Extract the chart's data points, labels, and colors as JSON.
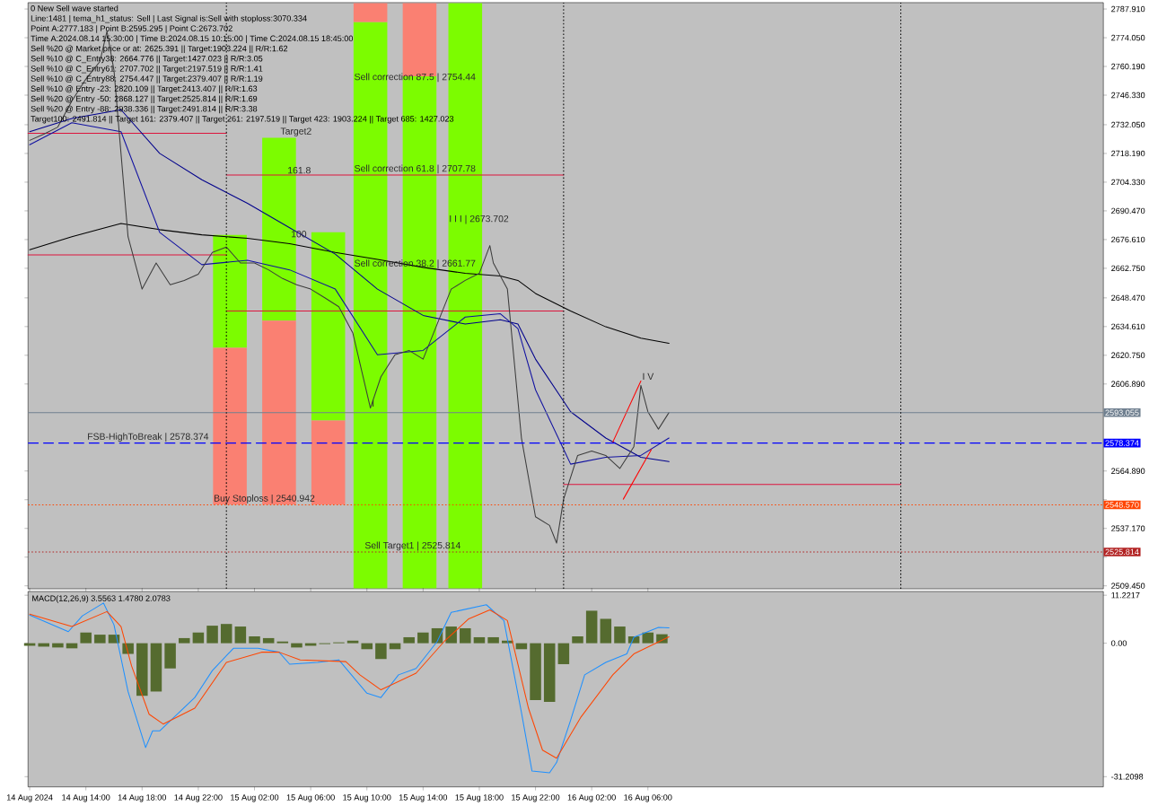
{
  "chart_data": [
    {
      "type": "line",
      "xlim": [
        "2024-08-14T09:53",
        "2024-08-17T14:25"
      ],
      "ylim": [
        2508,
        2791
      ],
      "tick_labels": "y",
      "yticks": [
        {
          "value": 2787.91,
          "label": "2787.910"
        },
        {
          "value": 2774.05,
          "label": "2774.050"
        },
        {
          "value": 2760.19,
          "label": "2760.190"
        },
        {
          "value": 2746.33,
          "label": "2746.330"
        },
        {
          "value": 2732.05,
          "label": "2732.050"
        },
        {
          "value": 2718.19,
          "label": "2718.190"
        },
        {
          "value": 2704.33,
          "label": "2704.330"
        },
        {
          "value": 2690.47,
          "label": "2690.470"
        },
        {
          "value": 2676.61,
          "label": "2676.610"
        },
        {
          "value": 2662.75,
          "label": "2662.750"
        },
        {
          "value": 2648.47,
          "label": "2648.470"
        },
        {
          "value": 2634.61,
          "label": "2634.610"
        },
        {
          "value": 2620.75,
          "label": "2620.750"
        },
        {
          "value": 2606.89,
          "label": "2606.890"
        },
        {
          "value": 2564.89,
          "label": "2564.890"
        },
        {
          "value": 2551.03,
          "label": null
        },
        {
          "value": 2537.17,
          "label": "2537.170"
        },
        {
          "value": 2523.31,
          "label": null
        },
        {
          "value": 2509.45,
          "label": "2509.450"
        }
      ],
      "series": [
        {
          "type": "bar",
          "color": "#7cfc00",
          "x": [
            "2024-08-15T00:15",
            "2024-08-15T03:45",
            "2024-08-15T07:15",
            "2024-08-15T10:15",
            "2024-08-15T13:45",
            "2024-08-15T17:00"
          ],
          "base": [
            2624.4,
            2637.5,
            2589.3,
            2508.2,
            2508.2,
            2508.2
          ],
          "values": [
            54.5,
            88.3,
            90.9,
            273.4,
            247.2,
            282.6
          ]
        },
        {
          "type": "bar",
          "color": "#fa8072",
          "x": [
            "2024-08-15T00:15",
            "2024-08-15T03:45",
            "2024-08-15T07:15",
            "2024-08-15T10:15",
            "2024-08-15T13:45"
          ],
          "base": [
            2548.7,
            2548.7,
            2548.7,
            2781.6,
            2755.4
          ],
          "values": [
            75.7,
            88.8,
            40.6,
            9.2,
            35.4
          ]
        },
        {
          "color": "#dc143c",
          "x": [
            "2024-08-14T09:53",
            "2024-08-15T00:00"
          ],
          "values": [
            2727.9,
            2727.9
          ]
        },
        {
          "color": "#dc143c",
          "x": [
            "2024-08-15T00:00",
            "2024-08-16T00:00"
          ],
          "values": [
            2707.8,
            2707.8
          ]
        },
        {
          "color": "#dc143c",
          "x": [
            "2024-08-14T09:53",
            "2024-08-15T00:00"
          ],
          "values": [
            2669.2,
            2669.2
          ]
        },
        {
          "color": "#dc143c",
          "x": [
            "2024-08-15T00:00",
            "2024-08-16T00:00"
          ],
          "values": [
            2642.1,
            2642.1
          ]
        },
        {
          "color": "#dc143c",
          "x": [
            "2024-08-16T00:00",
            "2024-08-17T00:00"
          ],
          "values": [
            2558.4,
            2558.4
          ]
        },
        {
          "color": "#000000",
          "x": [
            "2024-08-14T10:00",
            "2024-08-14T13:00",
            "2024-08-14T16:30",
            "2024-08-14T19:15",
            "2024-08-14T22:15",
            "2024-08-15T01:30",
            "2024-08-15T04:30",
            "2024-08-15T07:45",
            "2024-08-15T10:45",
            "2024-08-15T14:00",
            "2024-08-15T17:00",
            "2024-08-15T19:30",
            "2024-08-15T20:45",
            "2024-08-15T22:00",
            "2024-08-16T00:30",
            "2024-08-16T03:00",
            "2024-08-16T05:30",
            "2024-08-16T07:30"
          ],
          "values": [
            2671.7,
            2678.0,
            2684.4,
            2681.4,
            2678.9,
            2677.2,
            2674.6,
            2670.4,
            2667.0,
            2663.2,
            2660.3,
            2659.0,
            2656.9,
            2650.6,
            2642.1,
            2634.5,
            2629.0,
            2626.5
          ]
        },
        {
          "color": "#00008b",
          "x": [
            "2024-08-14T10:00",
            "2024-08-14T13:00",
            "2024-08-14T16:30",
            "2024-08-14T19:15",
            "2024-08-14T22:15",
            "2024-08-15T01:30",
            "2024-08-15T04:30",
            "2024-08-15T07:45",
            "2024-08-15T10:45",
            "2024-08-15T14:00",
            "2024-08-15T17:00",
            "2024-08-15T19:30",
            "2024-08-15T20:45",
            "2024-08-15T22:00",
            "2024-08-16T00:30",
            "2024-08-16T03:00",
            "2024-08-16T05:30",
            "2024-08-16T07:30"
          ],
          "values": [
            2728.7,
            2735.1,
            2739.3,
            2718.2,
            2705.5,
            2694.1,
            2682.3,
            2669.6,
            2652.7,
            2640.0,
            2635.8,
            2637.9,
            2635.8,
            2618.9,
            2593.5,
            2580.8,
            2571.5,
            2569.4
          ]
        },
        {
          "color": "#1010a0",
          "x": [
            "2024-08-14T10:00",
            "2024-08-14T13:00",
            "2024-08-14T16:30",
            "2024-08-14T19:15",
            "2024-08-14T22:15",
            "2024-08-15T01:30",
            "2024-08-15T04:30",
            "2024-08-15T07:45",
            "2024-08-15T10:45",
            "2024-08-15T14:00",
            "2024-08-15T17:00",
            "2024-08-15T19:30",
            "2024-08-15T20:45",
            "2024-08-15T22:00",
            "2024-08-16T00:30",
            "2024-08-16T03:00",
            "2024-08-16T05:30",
            "2024-08-16T07:30"
          ],
          "values": [
            2722.4,
            2733.0,
            2728.7,
            2680.1,
            2664.5,
            2666.6,
            2662.0,
            2652.7,
            2621.0,
            2623.1,
            2639.2,
            2640.8,
            2633.6,
            2604.1,
            2568.2,
            2571.5,
            2572.4,
            2580.8
          ]
        },
        {
          "color": "#3c3c3c",
          "x": [
            "2024-08-14T10:00",
            "2024-08-14T11:00",
            "2024-08-14T12:00",
            "2024-08-14T13:00",
            "2024-08-14T14:00",
            "2024-08-14T15:00",
            "2024-08-14T15:30",
            "2024-08-14T16:00",
            "2024-08-14T17:00",
            "2024-08-14T18:00",
            "2024-08-14T19:00",
            "2024-08-14T20:00",
            "2024-08-14T21:00",
            "2024-08-14T22:00",
            "2024-08-14T23:00",
            "2024-08-15T00:00",
            "2024-08-15T01:00",
            "2024-08-15T02:00",
            "2024-08-15T03:00",
            "2024-08-15T04:00",
            "2024-08-15T05:00",
            "2024-08-15T06:00",
            "2024-08-15T07:00",
            "2024-08-15T08:00",
            "2024-08-15T09:00",
            "2024-08-15T10:15",
            "2024-08-15T11:00",
            "2024-08-15T12:00",
            "2024-08-15T13:00",
            "2024-08-15T14:00",
            "2024-08-15T15:00",
            "2024-08-15T16:00",
            "2024-08-15T17:00",
            "2024-08-15T18:00",
            "2024-08-15T18:45",
            "2024-08-15T19:00",
            "2024-08-15T20:00",
            "2024-08-15T21:00",
            "2024-08-15T22:00",
            "2024-08-15T23:00",
            "2024-08-15T23:30",
            "2024-08-16T00:00",
            "2024-08-16T01:00",
            "2024-08-16T02:00",
            "2024-08-16T03:00",
            "2024-08-16T04:00",
            "2024-08-16T05:00",
            "2024-08-16T05:30",
            "2024-08-16T06:00",
            "2024-08-16T06:45",
            "2024-08-16T07:30"
          ],
          "values": [
            2724.5,
            2727.5,
            2730.9,
            2743.5,
            2754.1,
            2762.6,
            2777.2,
            2758.3,
            2678.0,
            2652.7,
            2665.3,
            2654.8,
            2656.9,
            2659.9,
            2670.4,
            2673.0,
            2665.3,
            2665.3,
            2662.0,
            2657.8,
            2654.8,
            2652.7,
            2648.5,
            2644.2,
            2631.5,
            2595.3,
            2610.4,
            2621.0,
            2623.1,
            2618.9,
            2635.8,
            2652.7,
            2656.9,
            2660.3,
            2673.7,
            2665.3,
            2652.7,
            2580.8,
            2542.8,
            2538.6,
            2530.1,
            2551.3,
            2572.4,
            2574.5,
            2572.4,
            2566.1,
            2576.6,
            2606.2,
            2593.5,
            2585.1,
            2593.1
          ]
        },
        {
          "color": "#ff0000",
          "x": [
            "2024-08-16T03:30",
            "2024-08-16T05:30"
          ],
          "values": [
            2578.8,
            2608.3
          ]
        },
        {
          "color": "#ff0000",
          "x": [
            "2024-08-16T04:15",
            "2024-08-16T06:15"
          ],
          "values": [
            2551.3,
            2575.3
          ]
        }
      ],
      "ref_lines": [
        {
          "axis": "y",
          "value": 2593.055,
          "label": "2593.055",
          "color": "#708090",
          "line_style": "solid"
        },
        {
          "axis": "y",
          "value": 2578.374,
          "label": "2578.374",
          "color": "#0000ff",
          "line_style": "dashed"
        },
        {
          "axis": "y",
          "value": 2548.57,
          "label": "2548.570",
          "color": "#ff4500",
          "line_style": "dotted"
        },
        {
          "axis": "y",
          "value": 2525.814,
          "label": "2525.814",
          "color": "#b22222",
          "line_style": "dotted"
        },
        {
          "axis": "x",
          "value": "2024-08-15T00:00",
          "color": "#000000",
          "line_style": "dotted"
        },
        {
          "axis": "x",
          "value": "2024-08-16T00:00",
          "color": "#000000",
          "line_style": "dotted"
        },
        {
          "axis": "x",
          "value": "2024-08-17T00:00",
          "color": "#000000",
          "line_style": "dotted"
        }
      ],
      "annotations": [
        "0 New Sell wave started",
        "Line:1481 | tema_h1_status: Sell | Last Signal is:Sell with stoploss:3070.334",
        "Point A:2777.183 | Point B:2595.295 | Point C:2673.702",
        "Time A:2024.08.14 15:30:00 | Time B:2024.08.15 10:15:00 | Time C:2024.08.15 18:45:00",
        "Sell %20 @ Market price or at: 2625.391 || Target:1903.224 || R/R:1.62",
        "Sell %10 @ C_Entry38: 2664.776 || Target:1427.023 || R/R:3.05",
        "Sell %10 @ C_Entry61: 2707.702 || Target:2197.519 || R/R:1.41",
        "Sell %10 @ C_Entry88: 2754.447 || Target:2379.407 || R/R:1.19",
        "Sell %10 @ Entry -23: 2820.109 || Target:2413.407 || R/R:1.63",
        "Sell %20 @ Entry -50: 2868.127 || Target:2525.814 || R/R:1.69",
        "Sell %20 @ Entry -88: 2938.336 || Target:2491.814 || R/R:3.38",
        "Target100: 2491.814 || Target 161: 2379.407 || Target 261: 2197.519 || Target 423: 1903.224 || Target 685: 1427.023",
        {
          "text": "Sell correction 87.5 | 2754.44",
          "x": "2024-08-15T09:00",
          "y": 2752
        },
        {
          "text": "Sell correction 61.8 | 2707.78",
          "x": "2024-08-15T09:00",
          "y": 2707.8
        },
        {
          "text": "Sell correction 38.2 | 2661.77",
          "x": "2024-08-15T09:00",
          "y": 2662
        },
        {
          "text": "Target2",
          "x": "2024-08-15T03:45",
          "y": 2725.8
        },
        {
          "text": "161.8",
          "x": "2024-08-15T04:15",
          "y": 2707.8
        },
        {
          "text": "100",
          "x": "2024-08-15T04:30",
          "y": 2677
        },
        {
          "text": "I I I | 2673.702",
          "x": "2024-08-15T15:45",
          "y": 2683.5
        },
        {
          "text": "I V",
          "x": "2024-08-16T05:30",
          "y": 2608.3
        },
        {
          "text": "I",
          "x": "2024-08-15T10:15",
          "y": 2595.3
        },
        {
          "text": "FSB-HighToBreak | 2578.374",
          "x": "2024-08-14T14:00",
          "y": 2578.374
        },
        {
          "text": "Buy Stoploss | 2540.942",
          "x": "2024-08-14T23:00",
          "y": 2548.57
        },
        {
          "text": "Sell Target1 | 2525.814",
          "x": "2024-08-15T09:45",
          "y": 2525.814
        }
      ]
    },
    {
      "type": "bar",
      "title": "MACD(12,26,9) 3.5563 1.4780 2.0783",
      "xlim": [
        "2024-08-14T09:53",
        "2024-08-17T14:25"
      ],
      "ylim": [
        -33.6,
        12.1
      ],
      "xticks": [
        {
          "value": "2024-08-14T10:00",
          "label": "14 Aug 2024"
        },
        {
          "value": "2024-08-14T14:00",
          "label": "14 Aug 14:00"
        },
        {
          "value": "2024-08-14T18:00",
          "label": "14 Aug 18:00"
        },
        {
          "value": "2024-08-14T22:00",
          "label": "14 Aug 22:00"
        },
        {
          "value": "2024-08-15T02:00",
          "label": "15 Aug 02:00"
        },
        {
          "value": "2024-08-15T06:00",
          "label": "15 Aug 06:00"
        },
        {
          "value": "2024-08-15T10:00",
          "label": "15 Aug 10:00"
        },
        {
          "value": "2024-08-15T14:00",
          "label": "15 Aug 14:00"
        },
        {
          "value": "2024-08-15T18:00",
          "label": "15 Aug 18:00"
        },
        {
          "value": "2024-08-15T22:00",
          "label": "15 Aug 22:00"
        },
        {
          "value": "2024-08-16T02:00",
          "label": "16 Aug 02:00"
        },
        {
          "value": "2024-08-16T06:00",
          "label": "16 Aug 06:00"
        }
      ],
      "yticks": [
        11.2217,
        {
          "value": 0,
          "label": "0.00"
        },
        -31.2098
      ],
      "series": [
        {
          "color": "#556b2f",
          "x": [
            "2024-08-14T10:00",
            "2024-08-14T11:00",
            "2024-08-14T12:00",
            "2024-08-14T13:00",
            "2024-08-14T14:00",
            "2024-08-14T15:00",
            "2024-08-14T16:00",
            "2024-08-14T17:00",
            "2024-08-14T18:00",
            "2024-08-14T19:00",
            "2024-08-14T20:00",
            "2024-08-14T21:00",
            "2024-08-14T22:00",
            "2024-08-14T23:00",
            "2024-08-15T00:00",
            "2024-08-15T01:00",
            "2024-08-15T02:00",
            "2024-08-15T03:00",
            "2024-08-15T04:00",
            "2024-08-15T05:00",
            "2024-08-15T06:00",
            "2024-08-15T07:00",
            "2024-08-15T08:00",
            "2024-08-15T09:00",
            "2024-08-15T10:00",
            "2024-08-15T11:00",
            "2024-08-15T12:00",
            "2024-08-15T13:00",
            "2024-08-15T14:00",
            "2024-08-15T15:00",
            "2024-08-15T16:00",
            "2024-08-15T17:00",
            "2024-08-15T18:00",
            "2024-08-15T19:00",
            "2024-08-15T20:00",
            "2024-08-15T21:00",
            "2024-08-15T22:00",
            "2024-08-15T23:00",
            "2024-08-16T00:00",
            "2024-08-16T01:00",
            "2024-08-16T02:00",
            "2024-08-16T03:00",
            "2024-08-16T04:00",
            "2024-08-16T05:00",
            "2024-08-16T06:00",
            "2024-08-16T07:00"
          ],
          "values": [
            -0.6,
            -0.8,
            -1.0,
            -1.2,
            2.5,
            2.0,
            2.0,
            -2.5,
            -12.3,
            -11.3,
            -5.9,
            1.2,
            2.5,
            4.1,
            4.5,
            3.9,
            1.6,
            1.2,
            0.4,
            -1.0,
            -0.6,
            -0.2,
            0.2,
            0.6,
            -1.4,
            -3.7,
            -1.4,
            1.4,
            2.5,
            3.5,
            3.9,
            3.5,
            1.4,
            1.4,
            0.6,
            -1.4,
            -13.3,
            -13.7,
            -4.9,
            1.6,
            7.6,
            5.7,
            3.9,
            1.6,
            2.5,
            2.1
          ]
        },
        {
          "type": "line",
          "color": "#1e90ff",
          "x": [
            "2024-08-14T10:00",
            "2024-08-14T12:45",
            "2024-08-14T13:45",
            "2024-08-14T15:15",
            "2024-08-14T16:00",
            "2024-08-14T17:00",
            "2024-08-14T18:15",
            "2024-08-14T18:45",
            "2024-08-14T19:15",
            "2024-08-14T21:45",
            "2024-08-14T23:00",
            "2024-08-15T00:30",
            "2024-08-15T02:15",
            "2024-08-15T03:45",
            "2024-08-15T04:30",
            "2024-08-15T06:30",
            "2024-08-15T08:00",
            "2024-08-15T09:00",
            "2024-08-15T10:00",
            "2024-08-15T11:00",
            "2024-08-15T12:15",
            "2024-08-15T13:30",
            "2024-08-15T15:00",
            "2024-08-15T16:00",
            "2024-08-15T18:30",
            "2024-08-15T19:45",
            "2024-08-15T21:00",
            "2024-08-15T21:45",
            "2024-08-15T23:00",
            "2024-08-15T23:30",
            "2024-08-16T00:30",
            "2024-08-16T01:30",
            "2024-08-16T03:00",
            "2024-08-16T04:30",
            "2024-08-16T05:00",
            "2024-08-16T06:45",
            "2024-08-16T07:30"
          ],
          "values": [
            6.6,
            2.7,
            6.4,
            9.4,
            4.3,
            -11.3,
            -24.4,
            -20.5,
            -20.5,
            -12.7,
            -6.4,
            -1.2,
            -1.2,
            -2.1,
            -4.9,
            -4.5,
            -3.9,
            -7.8,
            -11.7,
            -12.7,
            -7.4,
            -5.9,
            0.4,
            7.2,
            9.0,
            5.3,
            -16.2,
            -29.9,
            -30.3,
            -27.9,
            -18.0,
            -7.4,
            -4.5,
            -2.5,
            1.4,
            3.7,
            3.6
          ]
        },
        {
          "type": "line",
          "color": "#ff4500",
          "x": [
            "2024-08-14T10:00",
            "2024-08-14T13:00",
            "2024-08-14T15:30",
            "2024-08-14T16:30",
            "2024-08-14T17:15",
            "2024-08-14T18:30",
            "2024-08-14T19:30",
            "2024-08-14T21:45",
            "2024-08-15T00:00",
            "2024-08-15T02:30",
            "2024-08-15T03:45",
            "2024-08-15T05:15",
            "2024-08-15T08:30",
            "2024-08-15T09:30",
            "2024-08-15T11:00",
            "2024-08-15T13:30",
            "2024-08-15T15:30",
            "2024-08-15T17:15",
            "2024-08-15T18:45",
            "2024-08-15T20:00",
            "2024-08-15T21:30",
            "2024-08-15T22:30",
            "2024-08-15T23:30",
            "2024-08-16T01:15",
            "2024-08-16T03:30",
            "2024-08-16T05:00",
            "2024-08-16T07:30"
          ],
          "values": [
            6.8,
            3.9,
            7.4,
            3.9,
            -5.3,
            -16.6,
            -18.9,
            -15.2,
            -4.5,
            -2.1,
            -2.1,
            -3.9,
            -4.3,
            -7.4,
            -10.9,
            -7.0,
            0.4,
            5.7,
            7.8,
            5.3,
            -15.2,
            -25.0,
            -26.9,
            -17.2,
            -7.4,
            -2.5,
            1.5
          ]
        }
      ]
    }
  ]
}
